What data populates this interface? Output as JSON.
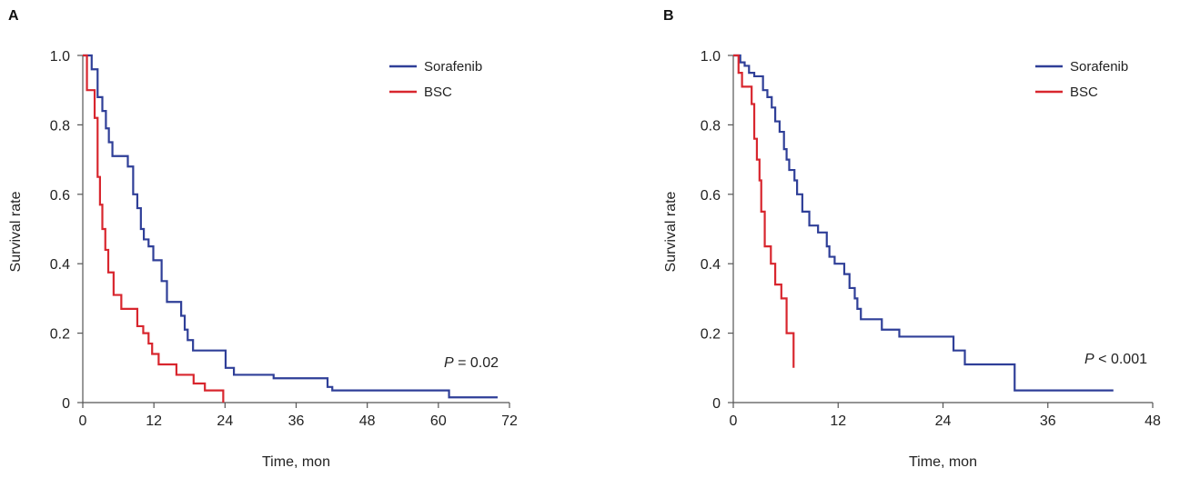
{
  "chart_data": [
    {
      "type": "line",
      "panel_label": "A",
      "xlabel": "Time, mon",
      "ylabel": "Survival rate",
      "xlim": [
        0,
        72
      ],
      "ylim": [
        0,
        1
      ],
      "xticks": [
        0,
        12,
        24,
        36,
        48,
        60,
        72
      ],
      "yticks": [
        0,
        0.2,
        0.4,
        0.6,
        0.8,
        1.0
      ],
      "xtick_labels": [
        "0",
        "12",
        "24",
        "36",
        "48",
        "60",
        "72"
      ],
      "ytick_labels": [
        "0",
        "0.2",
        "0.4",
        "0.6",
        "0.8",
        "1.0"
      ],
      "p_value": {
        "label": "P",
        "text": " = 0.02"
      },
      "legend_position": "top-right",
      "series": [
        {
          "name": "Sorafenib",
          "color": "#2f3f98",
          "x": [
            0,
            1.5,
            2.5,
            3.3,
            3.9,
            4.4,
            5.0,
            5.6,
            7.6,
            8.5,
            9.2,
            9.8,
            10.3,
            11.1,
            11.9,
            13.3,
            14.2,
            16.6,
            17.2,
            17.7,
            18.6,
            24.1,
            25.5,
            32.2,
            41.3,
            42.1,
            61.8,
            70
          ],
          "y": [
            1.0,
            0.96,
            0.88,
            0.84,
            0.79,
            0.75,
            0.71,
            0.71,
            0.68,
            0.6,
            0.56,
            0.5,
            0.47,
            0.45,
            0.41,
            0.35,
            0.29,
            0.25,
            0.21,
            0.18,
            0.15,
            0.1,
            0.08,
            0.07,
            0.045,
            0.035,
            0.015,
            0.015
          ]
        },
        {
          "name": "BSC",
          "color": "#d8262e",
          "x": [
            0,
            0.7,
            2.0,
            2.5,
            2.9,
            3.3,
            3.8,
            4.3,
            5.2,
            6.5,
            8.3,
            9.2,
            10.2,
            11.1,
            11.7,
            12.8,
            15.8,
            18.7,
            20.6,
            23.7
          ],
          "y": [
            1.0,
            0.9,
            0.82,
            0.65,
            0.57,
            0.5,
            0.44,
            0.375,
            0.31,
            0.27,
            0.27,
            0.22,
            0.2,
            0.17,
            0.14,
            0.11,
            0.08,
            0.055,
            0.035,
            0.0
          ]
        }
      ]
    },
    {
      "type": "line",
      "panel_label": "B",
      "xlabel": "Time, mon",
      "ylabel": "Survival rate",
      "xlim": [
        0,
        48
      ],
      "ylim": [
        0,
        1
      ],
      "xticks": [
        0,
        12,
        24,
        36,
        48
      ],
      "yticks": [
        0,
        0.2,
        0.4,
        0.6,
        0.8,
        1.0
      ],
      "xtick_labels": [
        "0",
        "12",
        "24",
        "36",
        "48"
      ],
      "ytick_labels": [
        "0",
        "0.2",
        "0.4",
        "0.6",
        "0.8",
        "1.0"
      ],
      "p_value": {
        "label": "P",
        "text": " < 0.001"
      },
      "legend_position": "top-right",
      "series": [
        {
          "name": "Sorafenib",
          "color": "#2f3f98",
          "x": [
            0,
            0.8,
            1.3,
            1.8,
            2.4,
            3.4,
            3.9,
            4.4,
            4.8,
            5.3,
            5.8,
            6.1,
            6.4,
            7.0,
            7.3,
            7.9,
            8.7,
            9.7,
            10.7,
            11.0,
            11.6,
            12.7,
            13.3,
            13.9,
            14.2,
            14.6,
            17.0,
            19.0,
            25.2,
            26.5,
            32.2,
            43.5
          ],
          "y": [
            1.0,
            0.98,
            0.97,
            0.95,
            0.94,
            0.9,
            0.88,
            0.85,
            0.81,
            0.78,
            0.73,
            0.7,
            0.67,
            0.64,
            0.6,
            0.55,
            0.51,
            0.49,
            0.45,
            0.42,
            0.4,
            0.37,
            0.33,
            0.3,
            0.27,
            0.24,
            0.21,
            0.19,
            0.15,
            0.11,
            0.035,
            0.035
          ]
        },
        {
          "name": "BSC",
          "color": "#d8262e",
          "x": [
            0,
            0.6,
            1.0,
            2.1,
            2.4,
            2.7,
            3.0,
            3.2,
            3.6,
            4.3,
            4.8,
            5.5,
            6.1,
            6.9
          ],
          "y": [
            1.0,
            0.95,
            0.91,
            0.86,
            0.76,
            0.7,
            0.64,
            0.55,
            0.45,
            0.4,
            0.34,
            0.3,
            0.2,
            0.1
          ]
        }
      ]
    }
  ]
}
